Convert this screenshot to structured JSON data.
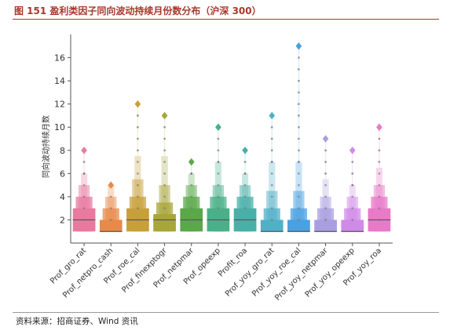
{
  "figure": {
    "title": "图 151  盈利类因子同向波动持续月份数分布（沪深 300）",
    "source": "资料来源：招商证券、Wind 资讯"
  },
  "chart_data": {
    "type": "boxen",
    "ylabel": "同向波动持续月数",
    "xlabel": "",
    "ylim": [
      0,
      18
    ],
    "yticks": [
      2,
      4,
      6,
      8,
      10,
      12,
      14,
      16
    ],
    "grid": false,
    "legend": "none",
    "categories": [
      "Prof_gro_rat",
      "Prof_netpro_cash",
      "Prof_roe_cal",
      "Prof_finexptogr",
      "Prof_netpmar",
      "Prof_opeexp",
      "Profit_roa",
      "Prof_yoy_gro_rat",
      "Prof_yoy_roe_cal",
      "Prof_yoy_netpmar",
      "Prof_yoy_opeexp",
      "Prof_yoy_roa"
    ],
    "colors": [
      "#e87aa0",
      "#e88a4a",
      "#c8a03a",
      "#a8a63a",
      "#5aa84a",
      "#4ab08a",
      "#48b0a8",
      "#50b0c8",
      "#4aa0e0",
      "#a89ee0",
      "#d08ae8",
      "#e87ac8"
    ],
    "series": [
      {
        "category": "Prof_gro_rat",
        "median": 2,
        "levels": [
          [
            1,
            3
          ],
          [
            1,
            4
          ],
          [
            1,
            5
          ],
          [
            1,
            6
          ]
        ],
        "outlier_max": 8
      },
      {
        "category": "Prof_netpro_cash",
        "median": 1,
        "levels": [
          [
            1,
            2
          ],
          [
            1,
            3
          ],
          [
            1,
            4
          ],
          [
            1,
            5
          ]
        ],
        "outlier_max": 5
      },
      {
        "category": "Prof_roe_cal",
        "median": 2,
        "levels": [
          [
            1,
            3
          ],
          [
            1,
            4
          ],
          [
            1,
            5.5
          ],
          [
            1,
            7.5
          ]
        ],
        "outlier_max": 12
      },
      {
        "category": "Prof_finexptogr",
        "median": 2,
        "levels": [
          [
            1,
            2.5
          ],
          [
            1,
            3.5
          ],
          [
            1,
            5
          ],
          [
            1,
            7.5
          ]
        ],
        "outlier_max": 11
      },
      {
        "category": "Prof_netpmar",
        "median": 2,
        "levels": [
          [
            1,
            3
          ],
          [
            1,
            4
          ],
          [
            1,
            5
          ],
          [
            1,
            6
          ]
        ],
        "outlier_max": 7
      },
      {
        "category": "Prof_opeexp",
        "median": 2,
        "levels": [
          [
            1,
            3
          ],
          [
            1,
            4
          ],
          [
            1,
            5
          ],
          [
            1,
            7
          ]
        ],
        "outlier_max": 10
      },
      {
        "category": "Profit_roa",
        "median": 2,
        "levels": [
          [
            1,
            3
          ],
          [
            1,
            4
          ],
          [
            1,
            5
          ],
          [
            1,
            6
          ]
        ],
        "outlier_max": 8
      },
      {
        "category": "Prof_yoy_gro_rat",
        "median": 1,
        "levels": [
          [
            1,
            2
          ],
          [
            1,
            3
          ],
          [
            1,
            4.5
          ],
          [
            1,
            7
          ]
        ],
        "outlier_max": 11
      },
      {
        "category": "Prof_yoy_roe_cal",
        "median": 1,
        "levels": [
          [
            1,
            2
          ],
          [
            1,
            3
          ],
          [
            1,
            4.5
          ],
          [
            1,
            7
          ]
        ],
        "outlier_max": 17
      },
      {
        "category": "Prof_yoy_netpmar",
        "median": 1,
        "levels": [
          [
            1,
            2
          ],
          [
            1,
            3
          ],
          [
            1,
            4
          ],
          [
            1,
            5.5
          ]
        ],
        "outlier_max": 9
      },
      {
        "category": "Prof_yoy_opeexp",
        "median": 1,
        "levels": [
          [
            1,
            2
          ],
          [
            1,
            3
          ],
          [
            1,
            4
          ],
          [
            1,
            5
          ]
        ],
        "outlier_max": 8
      },
      {
        "category": "Prof_yoy_roa",
        "median": 2,
        "levels": [
          [
            1,
            3
          ],
          [
            1,
            4
          ],
          [
            1,
            5
          ],
          [
            1,
            6.5
          ]
        ],
        "outlier_max": 10
      }
    ]
  }
}
